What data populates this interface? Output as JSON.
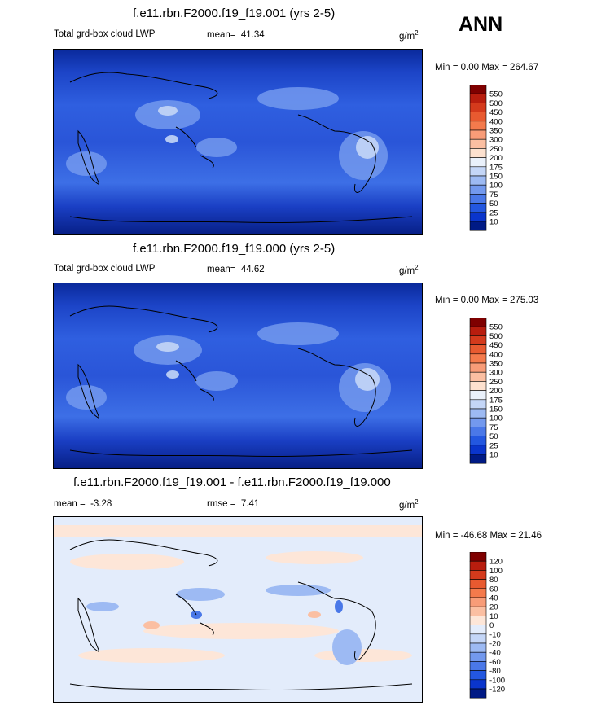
{
  "header": {
    "season": "ANN"
  },
  "chart_data": [
    {
      "type": "heatmap",
      "title": "f.e11.rbn.F2000.f19_f19.001 (yrs 2-5)",
      "variable": "Total grd-box cloud LWP",
      "stat_label": "mean=",
      "stat_value": "41.34",
      "units": "g/m",
      "units_sup": "2",
      "minmax_text": "Min =   0.00 Max = 264.67",
      "min": 0.0,
      "max": 264.67,
      "colorbar": {
        "labels": [
          "550",
          "500",
          "450",
          "400",
          "350",
          "300",
          "250",
          "200",
          "175",
          "150",
          "100",
          "75",
          "50",
          "25",
          "10"
        ],
        "colors": [
          "#7f0000",
          "#b81d0e",
          "#d43a1c",
          "#e85a30",
          "#f47a4c",
          "#f89c78",
          "#fbbfa2",
          "#fde1cf",
          "#eaf1fb",
          "#c4d6f7",
          "#9dbaf3",
          "#7399ee",
          "#4a78e8",
          "#2357e0",
          "#0a35cc",
          "#001a85"
        ]
      }
    },
    {
      "type": "heatmap",
      "title": "f.e11.rbn.F2000.f19_f19.000 (yrs 2-5)",
      "variable": "Total grd-box cloud LWP",
      "stat_label": "mean=",
      "stat_value": "44.62",
      "units": "g/m",
      "units_sup": "2",
      "minmax_text": "Min =   0.00 Max = 275.03",
      "min": 0.0,
      "max": 275.03,
      "colorbar": {
        "labels": [
          "550",
          "500",
          "450",
          "400",
          "350",
          "300",
          "250",
          "200",
          "175",
          "150",
          "100",
          "75",
          "50",
          "25",
          "10"
        ],
        "colors": [
          "#7f0000",
          "#b81d0e",
          "#d43a1c",
          "#e85a30",
          "#f47a4c",
          "#f89c78",
          "#fbbfa2",
          "#fde1cf",
          "#eaf1fb",
          "#c4d6f7",
          "#9dbaf3",
          "#7399ee",
          "#4a78e8",
          "#2357e0",
          "#0a35cc",
          "#001a85"
        ]
      }
    },
    {
      "type": "heatmap",
      "title": "f.e11.rbn.F2000.f19_f19.001 - f.e11.rbn.F2000.f19_f19.000",
      "stat_label": "mean =",
      "stat_value": "-3.28",
      "rmse_label": "rmse =",
      "rmse_value": "7.41",
      "units": "g/m",
      "units_sup": "2",
      "minmax_text": "Min = -46.68 Max =  21.46",
      "min": -46.68,
      "max": 21.46,
      "colorbar": {
        "labels": [
          "120",
          "100",
          "80",
          "60",
          "40",
          "20",
          "10",
          "0",
          "-10",
          "-20",
          "-40",
          "-60",
          "-80",
          "-100",
          "-120"
        ],
        "colors": [
          "#7f0000",
          "#b81d0e",
          "#d43a1c",
          "#e85a30",
          "#f47a4c",
          "#f89c78",
          "#fbbfa2",
          "#fde6d8",
          "#e3ecfb",
          "#c4d6f7",
          "#9dbaf3",
          "#7399ee",
          "#4a78e8",
          "#2357e0",
          "#0a35cc",
          "#001a85"
        ]
      }
    }
  ]
}
